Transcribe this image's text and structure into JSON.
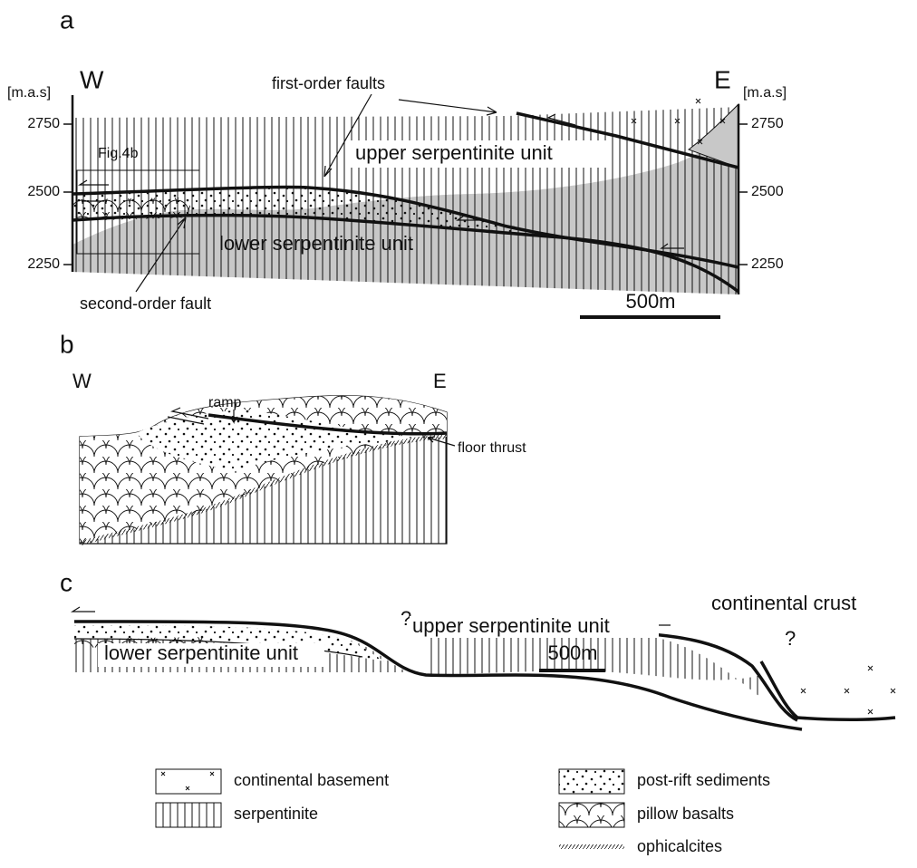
{
  "panels": [
    {
      "label": "a",
      "left_unit": "[m.a.s]",
      "right_unit": "[m.a.s]",
      "west": "W",
      "east": "E",
      "left_ticks": [
        2750,
        2500,
        2250
      ],
      "right_ticks": [
        2750,
        2500,
        2250
      ],
      "annotations": [
        "first-order faults",
        "Fig.4b",
        "upper serpentinite unit",
        "lower serpentinite unit",
        "second-order fault"
      ],
      "scale_bar": "500m"
    },
    {
      "label": "b",
      "west": "W",
      "east": "E",
      "annotations": [
        "ramp",
        "floor thrust"
      ]
    },
    {
      "label": "c",
      "annotations": [
        "?",
        "upper serpentinite unit",
        "continental crust",
        "?",
        "lower serpentinite unit"
      ],
      "scale_bar": "500m"
    }
  ],
  "legend": [
    "continental basement",
    "serpentinite",
    "post-rift sediments",
    "pillow basalts",
    "ophicalcites"
  ]
}
